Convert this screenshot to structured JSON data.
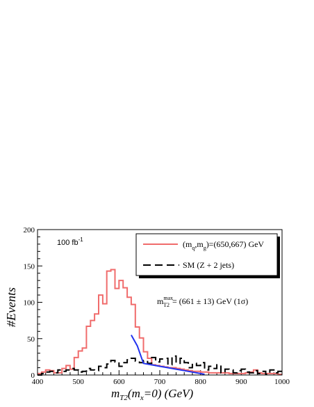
{
  "chart_data": {
    "type": "line",
    "title": "",
    "xlabel": "m_T2(m_x=0) (GeV)",
    "ylabel": "#Events",
    "xlim": [
      400,
      1000
    ],
    "ylim": [
      0,
      200
    ],
    "x_ticks": [
      400,
      500,
      600,
      700,
      800,
      900,
      1000
    ],
    "y_ticks": [
      0,
      50,
      100,
      150,
      200
    ],
    "bin_width": 10,
    "grid": false,
    "legend_placement": "top-right",
    "luminosity_label": "100 fb",
    "luminosity_exponent": "-1",
    "mass_annotation": {
      "label": "m",
      "superscript": "max",
      "subscript": "T2",
      "value": "=  (661 ± 13) GeV (1σ)"
    },
    "series": [
      {
        "name": "(m_q,m_g)=(650,667) GeV",
        "legend_main": "(m",
        "legend_sub1": "q",
        "legend_sep": ",m",
        "legend_sub2": "g",
        "legend_rest": ")=(650,667) GeV",
        "style": "solid-step",
        "color": "#f06b6b",
        "bin_edges_start": 400,
        "values": [
          2,
          4,
          7,
          6,
          3,
          3,
          9,
          13,
          8,
          24,
          33,
          37,
          67,
          75,
          84,
          110,
          98,
          143,
          145,
          119,
          130,
          120,
          107,
          97,
          66,
          51,
          32,
          23,
          14,
          13,
          12,
          11,
          10,
          10,
          9,
          8,
          7,
          6,
          5,
          5,
          4,
          4,
          3,
          3,
          3,
          3,
          3,
          2,
          2,
          2,
          2,
          3,
          4,
          7,
          3,
          2,
          2,
          2,
          2,
          1
        ]
      },
      {
        "name": "SM (Z + 2 jets)",
        "legend_main": "SM (Z + 2 jets)",
        "style": "dashed-step",
        "color": "#000000",
        "bin_edges_start": 400,
        "values": [
          0,
          2,
          4,
          5,
          3,
          7,
          5,
          7,
          9,
          7,
          4,
          5,
          9,
          7,
          6,
          12,
          10,
          15,
          20,
          18,
          12,
          17,
          21,
          23,
          19,
          17,
          20,
          16,
          24,
          18,
          22,
          23,
          14,
          26,
          16,
          23,
          17,
          10,
          16,
          13,
          17,
          7,
          12,
          9,
          14,
          3,
          8,
          7,
          3,
          6,
          8,
          4,
          3,
          6,
          2,
          5,
          1,
          7,
          3,
          5
        ]
      },
      {
        "name": "fit",
        "style": "solid-line",
        "color": "#2233ee",
        "x": [
          630,
          645,
          660,
          680,
          700,
          720,
          740,
          760,
          780,
          800,
          810
        ],
        "values": [
          55,
          40,
          16,
          14,
          12,
          10,
          8,
          6,
          4,
          2,
          1
        ]
      }
    ]
  }
}
